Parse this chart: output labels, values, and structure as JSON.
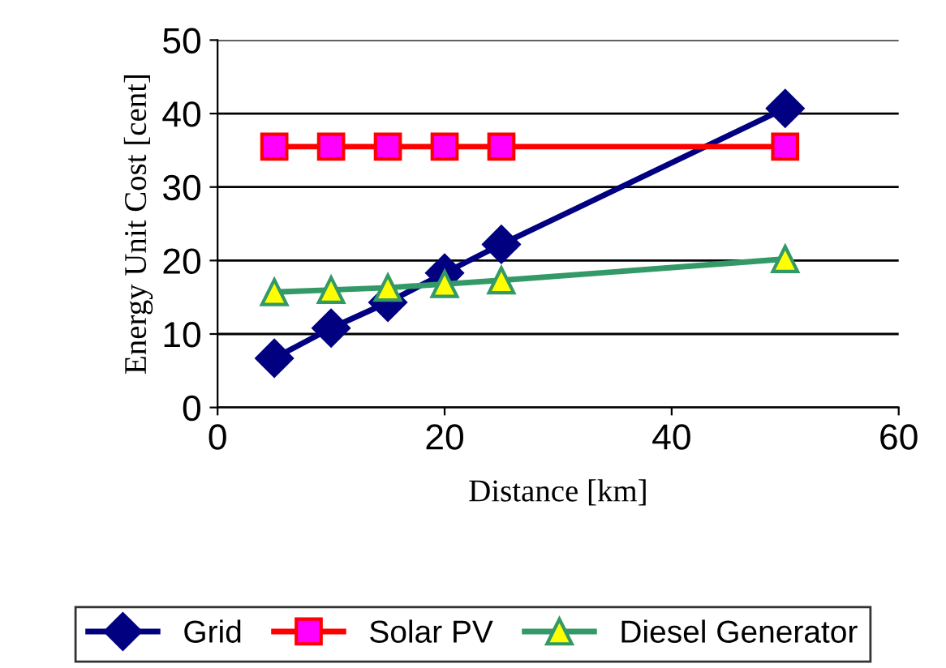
{
  "chart_data": {
    "type": "line",
    "xlabel": "Distance [km]",
    "ylabel": "Energy Unit Cost [cent]",
    "x": [
      5,
      10,
      15,
      20,
      25,
      50
    ],
    "series": [
      {
        "name": "Grid",
        "color": "#000080",
        "marker": "diamond",
        "values": [
          6.7,
          10.8,
          14.3,
          18.3,
          22.2,
          40.7
        ]
      },
      {
        "name": "Solar PV",
        "color": "#ff0000",
        "marker": "square",
        "values": [
          35.5,
          35.5,
          35.5,
          35.5,
          35.5,
          35.5
        ]
      },
      {
        "name": "Diesel Generator",
        "color": "#339966",
        "marker": "triangle",
        "values": [
          15.7,
          16,
          16.3,
          16.8,
          17.3,
          20.2
        ]
      }
    ],
    "xlim": [
      0,
      60
    ],
    "xticks": [
      0,
      20,
      40,
      60
    ],
    "ylim": [
      0,
      50
    ],
    "yticks": [
      0,
      10,
      20,
      30,
      40,
      50
    ],
    "grid": "y",
    "legend": "bottom"
  }
}
